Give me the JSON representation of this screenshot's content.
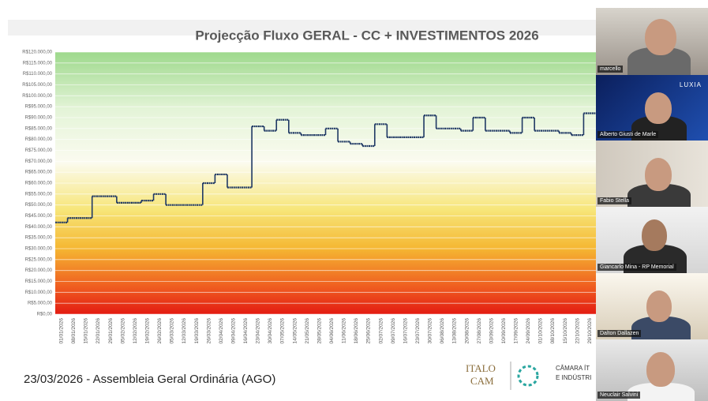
{
  "chart_data": {
    "type": "line",
    "title": "Projecção Fluxo GERAL - CC + INVESTIMENTOS 2026",
    "categories": [
      "01/01/2026",
      "08/01/2026",
      "15/01/2026",
      "22/01/2026",
      "29/01/2026",
      "05/02/2026",
      "12/02/2026",
      "19/02/2026",
      "26/02/2026",
      "05/03/2026",
      "12/03/2026",
      "19/03/2026",
      "26/03/2026",
      "02/04/2026",
      "09/04/2026",
      "16/04/2026",
      "23/04/2026",
      "30/04/2026",
      "07/05/2026",
      "14/05/2026",
      "21/05/2026",
      "28/05/2026",
      "04/06/2026",
      "11/06/2026",
      "18/06/2026",
      "25/06/2026",
      "02/07/2026",
      "09/07/2026",
      "16/07/2026",
      "23/07/2026",
      "30/07/2026",
      "06/08/2026",
      "13/08/2026",
      "20/08/2026",
      "27/08/2026",
      "03/09/2026",
      "10/09/2026",
      "17/09/2026",
      "24/09/2026",
      "01/10/2026",
      "08/10/2026",
      "15/10/2026",
      "22/10/2026",
      "29/10/2026"
    ],
    "values": [
      42000,
      44000,
      44000,
      54000,
      54000,
      51000,
      51000,
      52000,
      55000,
      50000,
      50000,
      50000,
      60000,
      64000,
      58000,
      58000,
      86000,
      84000,
      89000,
      83000,
      82000,
      82000,
      85000,
      79000,
      78000,
      77000,
      87000,
      81000,
      81000,
      81000,
      91000,
      85000,
      85000,
      84000,
      90000,
      84000,
      84000,
      83000,
      90000,
      84000,
      84000,
      83000,
      82000,
      92000
    ],
    "color": "#1f3864",
    "ylim": [
      0,
      120000
    ],
    "yticks": [
      {
        "value": 0,
        "label": "R$0,00"
      },
      {
        "value": 5000,
        "label": "R$5.000,00"
      },
      {
        "value": 10000,
        "label": "R$10.000,00"
      },
      {
        "value": 15000,
        "label": "R$15.000,00"
      },
      {
        "value": 20000,
        "label": "R$20.000,00"
      },
      {
        "value": 25000,
        "label": "R$25.000,00"
      },
      {
        "value": 30000,
        "label": "R$30.000,00"
      },
      {
        "value": 35000,
        "label": "R$35.000,00"
      },
      {
        "value": 40000,
        "label": "R$40.000,00"
      },
      {
        "value": 45000,
        "label": "R$45.000,00"
      },
      {
        "value": 50000,
        "label": "R$50.000,00"
      },
      {
        "value": 55000,
        "label": "R$55.000,00"
      },
      {
        "value": 60000,
        "label": "R$60.000,00"
      },
      {
        "value": 65000,
        "label": "R$65.000,00"
      },
      {
        "value": 70000,
        "label": "R$70.000,00"
      },
      {
        "value": 75000,
        "label": "R$75.000,00"
      },
      {
        "value": 80000,
        "label": "R$80.000,00"
      },
      {
        "value": 85000,
        "label": "R$85.000,00"
      },
      {
        "value": 90000,
        "label": "R$90.000,00"
      },
      {
        "value": 95000,
        "label": "R$95.000,00"
      },
      {
        "value": 100000,
        "label": "R$100.000,00"
      },
      {
        "value": 105000,
        "label": "R$105.000,00"
      },
      {
        "value": 110000,
        "label": "R$110.000,00"
      },
      {
        "value": 115000,
        "label": "R$115.000,00"
      },
      {
        "value": 120000,
        "label": "R$120.000,00"
      }
    ],
    "grid": true
  },
  "footer": {
    "text": "23/03/2026 - Assembleia Geral Ordinária (AGO)",
    "logo": [
      "ITALO",
      "CAM",
      "CÂMARA ÍT",
      "E INDÚSTRI"
    ]
  },
  "participants": [
    "marcello",
    "Alberto Giusti de Marle",
    "Fabio Stella",
    "Giancarlo Mina - RP Memorial",
    "Dalton Dallazen",
    "Neuclair Salvini"
  ],
  "tile_logo": "LUXIA"
}
